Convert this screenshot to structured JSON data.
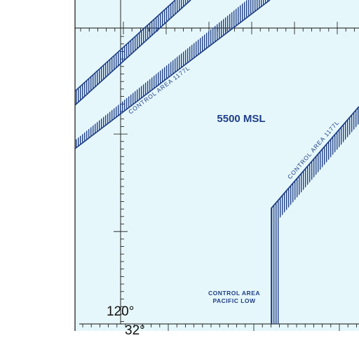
{
  "map": {
    "altitude_label": "5500 MSL",
    "airways": [
      {
        "label": "CONTROL AREA 1177L"
      },
      {
        "label": "CONTROL AREA 1177L"
      }
    ],
    "region_label": {
      "line1": "CONTROL AREA",
      "line2": "PACIFIC LOW"
    },
    "longitude_label": "120°",
    "latitude_label": "32°",
    "colors": {
      "water": "#e6f7fb",
      "line": "#1f3f86",
      "grid": "#111111",
      "outside": "#ffffff"
    }
  }
}
